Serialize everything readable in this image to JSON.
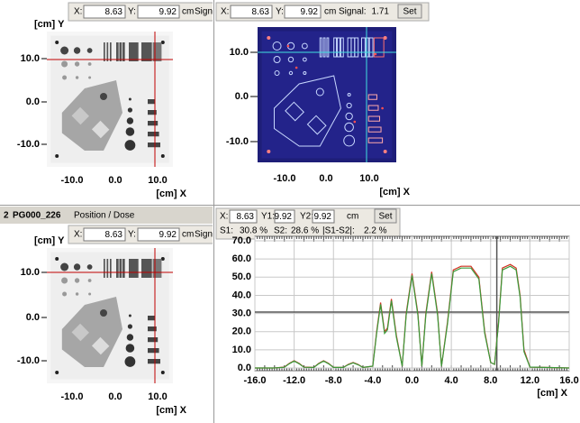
{
  "panels": [
    {
      "toolbar": {
        "x_label": "X:",
        "x": "8.63",
        "y_label": "Y:",
        "y": "9.92",
        "unit": "cm",
        "signal_label": "Signal:"
      },
      "y_axis_label": "[cm] Y",
      "x_axis_label": "[cm] X",
      "yticks": [
        "10.0",
        "0.0",
        "-10.0"
      ],
      "xticks": [
        "-10.0",
        "0.0",
        "10.0"
      ]
    },
    {
      "toolbar": {
        "x_label": "X:",
        "x": "8.63",
        "y_label": "Y:",
        "y": "9.92",
        "unit": "cm",
        "signal_label": "Signal:",
        "signal": "1.71",
        "button": "Set"
      },
      "x_axis_label": "[cm] X",
      "yticks": [
        "10.0",
        "0.0",
        "-10.0"
      ],
      "xticks": [
        "-10.0",
        "0.0",
        "10.0"
      ]
    },
    {
      "window_number": "2",
      "window_name": "PG000_226",
      "window_tab": "Position / Dose",
      "toolbar": {
        "x_label": "X:",
        "x": "8.63",
        "y_label": "Y:",
        "y": "9.92",
        "unit": "cm",
        "signal_label": "Signal:"
      },
      "y_axis_label": "[cm] Y",
      "x_axis_label": "[cm] X",
      "yticks": [
        "10.0",
        "0.0",
        "-10.0"
      ],
      "xticks": [
        "-10.0",
        "0.0",
        "10.0"
      ]
    }
  ],
  "chart_data": {
    "type": "line",
    "readout": {
      "x_label": "X:",
      "x": "8.63",
      "y1_label": "Y1:",
      "y1": "9.92",
      "y2_label": "Y2:",
      "y2": "9.92",
      "unit": "cm",
      "button": "Set",
      "s1_label": "S1:",
      "s1": "30.8 %",
      "s2_label": "S2:",
      "s2": "28.6 %",
      "diff_label": "|S1-S2|:",
      "diff": "2.2 %"
    },
    "x_axis_label": "[cm] X",
    "x": [
      -16,
      -14,
      -13,
      -12.5,
      -12,
      -11.5,
      -11,
      -10,
      -9.5,
      -9,
      -8.5,
      -8,
      -7,
      -6.5,
      -6,
      -5.5,
      -5,
      -4,
      -3.6,
      -3.2,
      -2.8,
      -2.5,
      -2.1,
      -1.6,
      -1,
      -0.6,
      0,
      0.6,
      1,
      1.4,
      2,
      2.6,
      3,
      3.6,
      4.2,
      5,
      6,
      6.8,
      7.4,
      8,
      8.4,
      8.8,
      9.2,
      10,
      10.6,
      11,
      11.4,
      12,
      16
    ],
    "series": [
      {
        "color": "#d03020",
        "values": [
          0,
          0,
          0.5,
          2.5,
          4,
          2.5,
          0.5,
          0.3,
          2.5,
          4,
          2.5,
          0.3,
          0.3,
          2,
          3,
          2,
          0.3,
          1,
          20,
          36,
          20,
          22,
          38,
          18,
          1,
          30,
          52,
          30,
          1,
          30,
          53,
          30,
          1,
          25,
          54,
          56,
          56,
          50,
          20,
          3,
          2,
          25,
          55,
          57,
          55,
          40,
          10,
          0.5,
          0
        ]
      },
      {
        "color": "#3a9a3a",
        "values": [
          0,
          0,
          0.4,
          2.3,
          3.8,
          2.3,
          0.4,
          0.3,
          2.3,
          3.8,
          2.3,
          0.3,
          0.3,
          1.8,
          2.8,
          1.8,
          0.3,
          1,
          19,
          35,
          19,
          21,
          37,
          17,
          1,
          29,
          51,
          29,
          1,
          29,
          52,
          29,
          1,
          24,
          53,
          55,
          55,
          49,
          19,
          3,
          2,
          24,
          54,
          56,
          54,
          39,
          9,
          0.5,
          0
        ]
      }
    ],
    "xlim": [
      -16,
      16
    ],
    "ylim": [
      -1.5,
      72.5
    ],
    "xticks": [
      {
        "value": -16,
        "label": "-16.0"
      },
      {
        "value": -12,
        "label": "-12.0"
      },
      {
        "value": -8,
        "label": "-8.0"
      },
      {
        "value": -4,
        "label": "-4.0"
      },
      {
        "value": 0,
        "label": "0.0"
      },
      {
        "value": 4,
        "label": "4.0"
      },
      {
        "value": 8,
        "label": "8.0"
      },
      {
        "value": 12,
        "label": "12.0"
      },
      {
        "value": 16,
        "label": "16.0"
      }
    ],
    "yticks": [
      {
        "value": 0,
        "label": "0.0"
      },
      {
        "value": 10,
        "label": "10.0"
      },
      {
        "value": 20,
        "label": "20.0"
      },
      {
        "value": 30,
        "label": "30.0"
      },
      {
        "value": 40,
        "label": "40.0"
      },
      {
        "value": 50,
        "label": "50.0"
      },
      {
        "value": 60,
        "label": "60.0"
      },
      {
        "value": 70,
        "label": "70.0"
      }
    ],
    "grid": true
  }
}
